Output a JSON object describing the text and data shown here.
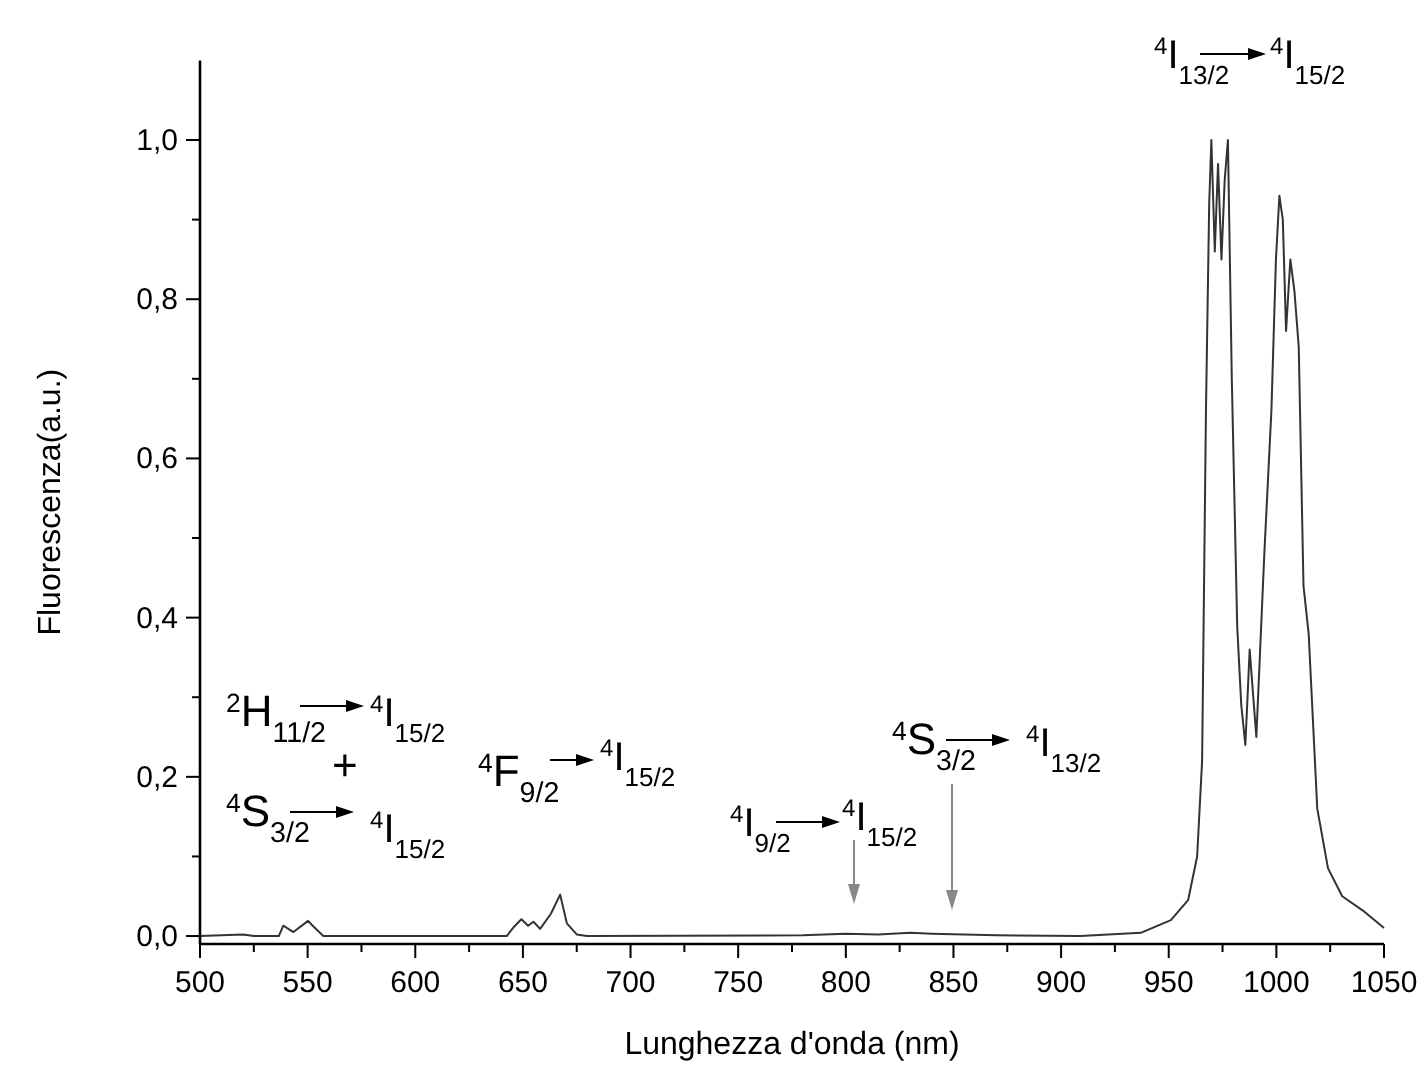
{
  "chart_data": {
    "type": "line",
    "xlabel": "Lunghezza d'onda (nm)",
    "ylabel": "Fluorescenza(a.u.)",
    "x": [
      500,
      520,
      525,
      536.6,
      538.7,
      543.4,
      550.2,
      552.7,
      557.3,
      642.5,
      646,
      649.3,
      652.4,
      654.9,
      658,
      663,
      667.3,
      670.4,
      675,
      679.7,
      780,
      800,
      815,
      830,
      840,
      855,
      870,
      909,
      937,
      951,
      959,
      963.2,
      965.5,
      967.3,
      968.8,
      969.8,
      971.4,
      972.9,
      974.5,
      976,
      977.5,
      979.3,
      981.8,
      983.7,
      985.6,
      987.6,
      989,
      990.7,
      994.4,
      997.7,
      999.8,
      1001.4,
      1003,
      1004.5,
      1006.5,
      1008.4,
      1010.4,
      1012.6,
      1015,
      1019,
      1024,
      1030.6,
      1040.2,
      1050
    ],
    "series": [
      {
        "color": "#333333",
        "values": [
          0,
          0.002,
          0,
          0,
          0.013,
          0.005,
          0.019,
          0.012,
          0,
          0,
          0.012,
          0.021,
          0.013,
          0.018,
          0.009,
          0.028,
          0.052,
          0.016,
          0.002,
          0,
          0.001,
          0.003,
          0.002,
          0.004,
          0.003,
          0.002,
          0.001,
          0,
          0.004,
          0.02,
          0.045,
          0.1,
          0.22,
          0.66,
          0.92,
          1.0,
          0.86,
          0.97,
          0.85,
          0.95,
          1.0,
          0.7,
          0.39,
          0.29,
          0.24,
          0.36,
          0.31,
          0.25,
          0.48,
          0.66,
          0.85,
          0.93,
          0.9,
          0.76,
          0.85,
          0.81,
          0.74,
          0.44,
          0.38,
          0.16,
          0.085,
          0.05,
          0.032,
          0.01
        ]
      }
    ],
    "xlim": [
      500,
      1050
    ],
    "ylim": [
      -0.01,
      1.1
    ],
    "xticks": [
      500,
      {
        "value": 525,
        "label": null
      },
      550,
      {
        "value": 575,
        "label": null
      },
      600,
      {
        "value": 625,
        "label": null
      },
      650,
      {
        "value": 675,
        "label": null
      },
      700,
      {
        "value": 725,
        "label": null
      },
      750,
      {
        "value": 775,
        "label": null
      },
      800,
      {
        "value": 825,
        "label": null
      },
      850,
      {
        "value": 875,
        "label": null
      },
      900,
      {
        "value": 925,
        "label": null
      },
      950,
      {
        "value": 975,
        "label": null
      },
      1000,
      {
        "value": 1025,
        "label": null
      },
      1050
    ],
    "yticks": [
      {
        "value": 0,
        "label": "0,0"
      },
      {
        "value": 0.1,
        "label": null
      },
      {
        "value": 0.2,
        "label": "0,2"
      },
      {
        "value": 0.3,
        "label": null
      },
      {
        "value": 0.4,
        "label": "0,4"
      },
      {
        "value": 0.5,
        "label": null
      },
      {
        "value": 0.6,
        "label": "0,6"
      },
      {
        "value": 0.7,
        "label": null
      },
      {
        "value": 0.8,
        "label": "0,8"
      },
      {
        "value": 0.9,
        "label": null
      },
      {
        "value": 1.0,
        "label": "1,0"
      }
    ],
    "grid": false,
    "marker": "none",
    "line_style": "solid",
    "annotations": [
      "$^{2}$H$_{11/2}$",
      "$^{4}$I$_{15/2}$",
      "+",
      "$^{4}$S$_{3/2}$",
      "$^{4}$I$_{15/2}$",
      "$^{4}$F$_{9/2}$",
      "$^{4}$I$_{15/2}$",
      "$^{4}$I$_{9/2}$",
      "$^{4}$I$_{15/2}$",
      "$^{4}$S$_{3/2}$",
      "$^{4}$I$_{13/2}$",
      "$^{4}$I$_{13/2}$",
      "$^{4}$I$_{15/2}$"
    ]
  }
}
